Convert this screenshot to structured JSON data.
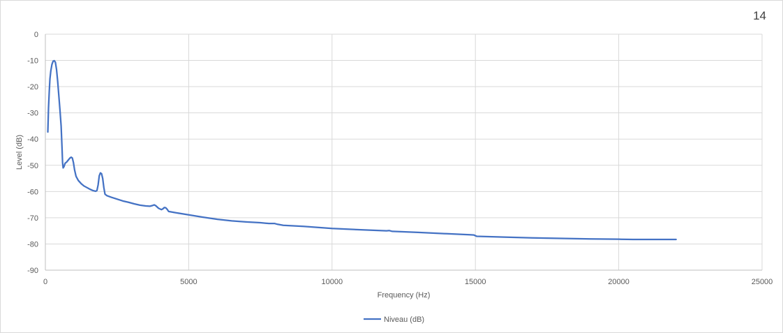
{
  "page": {
    "number": "14"
  },
  "chart_data": {
    "type": "line",
    "title": "",
    "xlabel": "Frequency (Hz)",
    "ylabel": "Level (dB)",
    "xlim": [
      0,
      25000
    ],
    "ylim": [
      -90,
      0
    ],
    "xticks": [
      0,
      5000,
      10000,
      15000,
      20000,
      25000
    ],
    "yticks": [
      0,
      -10,
      -20,
      -30,
      -40,
      -50,
      -60,
      -70,
      -80,
      -90
    ],
    "grid": true,
    "legend_position": "bottom",
    "colors": {
      "series": "#4472c4",
      "grid": "#d9d9d9",
      "axis": "#bfbfbf",
      "text": "#595959"
    },
    "series": [
      {
        "name": "Niveau (dB)",
        "points": [
          [
            86,
            -37.3
          ],
          [
            110,
            -28
          ],
          [
            135,
            -22
          ],
          [
            160,
            -17
          ],
          [
            190,
            -14
          ],
          [
            230,
            -11.5
          ],
          [
            270,
            -10.3
          ],
          [
            310,
            -10.1
          ],
          [
            350,
            -10.7
          ],
          [
            390,
            -13.5
          ],
          [
            430,
            -18
          ],
          [
            470,
            -23.5
          ],
          [
            510,
            -29
          ],
          [
            550,
            -35
          ],
          [
            580,
            -43
          ],
          [
            600,
            -49
          ],
          [
            620,
            -51
          ],
          [
            650,
            -50.5
          ],
          [
            690,
            -49.2
          ],
          [
            740,
            -48.8
          ],
          [
            800,
            -48
          ],
          [
            860,
            -47.2
          ],
          [
            900,
            -46.9
          ],
          [
            940,
            -47.2
          ],
          [
            980,
            -49
          ],
          [
            1020,
            -51.8
          ],
          [
            1070,
            -54.2
          ],
          [
            1150,
            -55.8
          ],
          [
            1250,
            -57
          ],
          [
            1350,
            -57.9
          ],
          [
            1450,
            -58.5
          ],
          [
            1550,
            -59.1
          ],
          [
            1650,
            -59.6
          ],
          [
            1750,
            -59.9
          ],
          [
            1800,
            -59.6
          ],
          [
            1840,
            -57.5
          ],
          [
            1880,
            -54
          ],
          [
            1920,
            -52.9
          ],
          [
            1960,
            -53.2
          ],
          [
            2000,
            -55
          ],
          [
            2040,
            -58.5
          ],
          [
            2080,
            -61
          ],
          [
            2150,
            -61.6
          ],
          [
            2300,
            -62.2
          ],
          [
            2500,
            -62.9
          ],
          [
            2700,
            -63.6
          ],
          [
            2900,
            -64.1
          ],
          [
            3100,
            -64.7
          ],
          [
            3300,
            -65.2
          ],
          [
            3500,
            -65.5
          ],
          [
            3650,
            -65.6
          ],
          [
            3750,
            -65.3
          ],
          [
            3800,
            -65.1
          ],
          [
            3850,
            -65.4
          ],
          [
            3950,
            -66.4
          ],
          [
            4050,
            -66.9
          ],
          [
            4100,
            -66.6
          ],
          [
            4150,
            -66.1
          ],
          [
            4200,
            -66.2
          ],
          [
            4250,
            -66.8
          ],
          [
            4300,
            -67.6
          ],
          [
            4500,
            -68
          ],
          [
            5000,
            -68.9
          ],
          [
            5500,
            -69.8
          ],
          [
            6000,
            -70.6
          ],
          [
            6500,
            -71.2
          ],
          [
            7000,
            -71.6
          ],
          [
            7500,
            -71.9
          ],
          [
            7800,
            -72.2
          ],
          [
            8000,
            -72.2
          ],
          [
            8100,
            -72.5
          ],
          [
            8300,
            -72.9
          ],
          [
            9000,
            -73.3
          ],
          [
            10000,
            -74.1
          ],
          [
            11000,
            -74.6
          ],
          [
            11900,
            -75
          ],
          [
            12000,
            -74.9
          ],
          [
            12100,
            -75.2
          ],
          [
            13000,
            -75.6
          ],
          [
            14000,
            -76.1
          ],
          [
            14800,
            -76.5
          ],
          [
            14950,
            -76.6
          ],
          [
            15050,
            -77.1
          ],
          [
            16000,
            -77.4
          ],
          [
            17000,
            -77.7
          ],
          [
            18000,
            -77.9
          ],
          [
            19000,
            -78.1
          ],
          [
            20000,
            -78.2
          ],
          [
            20500,
            -78.3
          ],
          [
            21000,
            -78.3
          ],
          [
            22000,
            -78.3
          ]
        ]
      }
    ]
  }
}
